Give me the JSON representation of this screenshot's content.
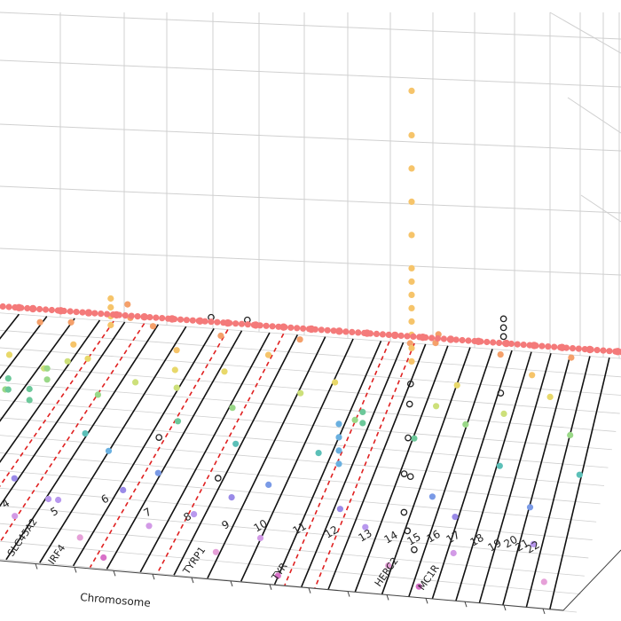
{
  "chart_data": {
    "type": "scatter",
    "view": "3d-manhattan",
    "title": "",
    "xlabel": "Chromosome",
    "ylabel": "",
    "zlabel": "",
    "grid": true,
    "chromosome_labels": [
      "4",
      "5",
      "6",
      "7",
      "8",
      "9",
      "10",
      "11",
      "12",
      "13",
      "14",
      "15",
      "16",
      "17",
      "18",
      "19",
      "20",
      "21",
      "22"
    ],
    "gene_labels": [
      {
        "name": "SLC45A2",
        "chromosome": 5
      },
      {
        "name": "IRF4",
        "chromosome": 6
      },
      {
        "name": "TYRP1",
        "chromosome": 9
      },
      {
        "name": "TYR",
        "chromosome": 11
      },
      {
        "name": "HERC2",
        "chromosome": 15
      },
      {
        "name": "MC1R",
        "chromosome": 16
      }
    ],
    "lane_colors": [
      "#f47a7a",
      "#f5a06a",
      "#f6c46a",
      "#e8d86a",
      "#cde07a",
      "#9ad888",
      "#6cc89a",
      "#5cc0b8",
      "#6ab0e0",
      "#7a9ae6",
      "#9a8ae8",
      "#b898ee",
      "#d29ae6",
      "#e6a0d8",
      "#d870c8"
    ],
    "series": [
      {
        "name": "",
        "points": [
          {
            "x": 1.0,
            "lane": 0,
            "y": 0.3
          },
          {
            "x": 1.5,
            "lane": 0,
            "y": 0.3
          },
          {
            "x": 2.5,
            "lane": 0,
            "y": 0.3
          },
          {
            "x": 3.5,
            "lane": 0,
            "y": 0.3
          },
          {
            "x": 4.5,
            "lane": 0,
            "y": 0.3
          },
          {
            "x": 5.5,
            "lane": 0,
            "y": 0.3
          },
          {
            "x": 6.5,
            "lane": 0,
            "y": 0.3
          },
          {
            "x": 7.5,
            "lane": 0,
            "y": 0.3
          },
          {
            "x": 8.5,
            "lane": 0,
            "y": 0.3
          },
          {
            "x": 9.5,
            "lane": 0,
            "y": 0.3
          },
          {
            "x": 10.5,
            "lane": 0,
            "y": 0.3
          },
          {
            "x": 11.5,
            "lane": 0,
            "y": 0.3
          },
          {
            "x": 12.5,
            "lane": 0,
            "y": 0.3
          },
          {
            "x": 13.5,
            "lane": 0,
            "y": 0.3
          },
          {
            "x": 14.5,
            "lane": 0,
            "y": 0.3
          },
          {
            "x": 15.5,
            "lane": 0,
            "y": 0.3
          },
          {
            "x": 16.5,
            "lane": 0,
            "y": 0.3
          },
          {
            "x": 17.5,
            "lane": 0,
            "y": 0.3
          },
          {
            "x": 18.5,
            "lane": 0,
            "y": 0.3
          },
          {
            "x": 19.5,
            "lane": 0,
            "y": 0.3
          },
          {
            "x": 20.5,
            "lane": 0,
            "y": 0.3
          },
          {
            "x": 21.5,
            "lane": 0,
            "y": 0.3
          },
          {
            "x": 22.5,
            "lane": 0,
            "y": 0.3
          },
          {
            "x": 2.2,
            "lane": 1,
            "y": 0.5
          },
          {
            "x": 3.3,
            "lane": 1,
            "y": 0.6
          },
          {
            "x": 5.3,
            "lane": 1,
            "y": 1.6
          },
          {
            "x": 5.4,
            "lane": 1,
            "y": 1.0
          },
          {
            "x": 6.2,
            "lane": 1,
            "y": 0.7
          },
          {
            "x": 8.6,
            "lane": 1,
            "y": 0.5
          },
          {
            "x": 11.4,
            "lane": 1,
            "y": 0.6
          },
          {
            "x": 15.3,
            "lane": 1,
            "y": 0.8
          },
          {
            "x": 16.2,
            "lane": 1,
            "y": 0.9
          },
          {
            "x": 16.3,
            "lane": 1,
            "y": 1.3
          },
          {
            "x": 18.5,
            "lane": 1,
            "y": 0.6
          },
          {
            "x": 21.0,
            "lane": 1,
            "y": 0.7
          },
          {
            "x": 3.8,
            "lane": 2,
            "y": 0.4
          },
          {
            "x": 5.1,
            "lane": 2,
            "y": 2.6
          },
          {
            "x": 5.1,
            "lane": 2,
            "y": 2.2
          },
          {
            "x": 5.1,
            "lane": 2,
            "y": 1.8
          },
          {
            "x": 5.1,
            "lane": 2,
            "y": 1.4
          },
          {
            "x": 7.4,
            "lane": 2,
            "y": 0.5
          },
          {
            "x": 10.6,
            "lane": 2,
            "y": 0.6
          },
          {
            "x": 15.6,
            "lane": 2,
            "y": 13.0
          },
          {
            "x": 15.6,
            "lane": 2,
            "y": 11.0
          },
          {
            "x": 15.6,
            "lane": 2,
            "y": 9.5
          },
          {
            "x": 15.6,
            "lane": 2,
            "y": 8.0
          },
          {
            "x": 15.6,
            "lane": 2,
            "y": 6.5
          },
          {
            "x": 15.6,
            "lane": 2,
            "y": 5.0
          },
          {
            "x": 15.6,
            "lane": 2,
            "y": 4.4
          },
          {
            "x": 15.6,
            "lane": 2,
            "y": 3.8
          },
          {
            "x": 15.6,
            "lane": 2,
            "y": 3.2
          },
          {
            "x": 15.6,
            "lane": 2,
            "y": 2.6
          },
          {
            "x": 15.6,
            "lane": 2,
            "y": 2.0
          },
          {
            "x": 15.6,
            "lane": 2,
            "y": 1.4
          },
          {
            "x": 15.6,
            "lane": 2,
            "y": 0.8
          },
          {
            "x": 19.8,
            "lane": 2,
            "y": 0.6
          },
          {
            "x": 2.0,
            "lane": 3,
            "y": 0.5
          },
          {
            "x": 4.7,
            "lane": 3,
            "y": 0.6
          },
          {
            "x": 7.7,
            "lane": 3,
            "y": 0.4
          },
          {
            "x": 9.4,
            "lane": 3,
            "y": 0.5
          },
          {
            "x": 13.2,
            "lane": 3,
            "y": 0.4
          },
          {
            "x": 17.4,
            "lane": 3,
            "y": 0.7
          },
          {
            "x": 20.6,
            "lane": 3,
            "y": 0.5
          },
          {
            "x": 1.6,
            "lane": 4,
            "y": 0.4
          },
          {
            "x": 3.6,
            "lane": 4,
            "y": 0.8
          },
          {
            "x": 4.4,
            "lane": 4,
            "y": 1.2
          },
          {
            "x": 6.7,
            "lane": 4,
            "y": 0.5
          },
          {
            "x": 8.1,
            "lane": 4,
            "y": 0.4
          },
          {
            "x": 12.3,
            "lane": 4,
            "y": 0.6
          },
          {
            "x": 16.9,
            "lane": 4,
            "y": 0.5
          },
          {
            "x": 19.2,
            "lane": 4,
            "y": 0.4
          },
          {
            "x": 2.7,
            "lane": 5,
            "y": 0.5
          },
          {
            "x": 4.1,
            "lane": 5,
            "y": 1.6
          },
          {
            "x": 4.1,
            "lane": 5,
            "y": 1.1
          },
          {
            "x": 5.8,
            "lane": 5,
            "y": 0.6
          },
          {
            "x": 10.3,
            "lane": 5,
            "y": 0.5
          },
          {
            "x": 14.4,
            "lane": 5,
            "y": 0.4
          },
          {
            "x": 18.1,
            "lane": 5,
            "y": 0.6
          },
          {
            "x": 21.6,
            "lane": 5,
            "y": 0.5
          },
          {
            "x": 1.9,
            "lane": 6,
            "y": 0.4
          },
          {
            "x": 3.2,
            "lane": 6,
            "y": 1.8
          },
          {
            "x": 3.2,
            "lane": 6,
            "y": 1.3
          },
          {
            "x": 3.9,
            "lane": 6,
            "y": 1.4
          },
          {
            "x": 3.9,
            "lane": 6,
            "y": 0.9
          },
          {
            "x": 8.8,
            "lane": 6,
            "y": 0.5
          },
          {
            "x": 14.9,
            "lane": 6,
            "y": 1.6
          },
          {
            "x": 14.9,
            "lane": 6,
            "y": 1.1
          },
          {
            "x": 16.6,
            "lane": 6,
            "y": 0.6
          },
          {
            "x": 1.3,
            "lane": 7,
            "y": 0.5
          },
          {
            "x": 6.1,
            "lane": 7,
            "y": 0.4
          },
          {
            "x": 11.0,
            "lane": 7,
            "y": 0.5
          },
          {
            "x": 13.7,
            "lane": 7,
            "y": 0.4
          },
          {
            "x": 19.6,
            "lane": 7,
            "y": 0.5
          },
          {
            "x": 22.2,
            "lane": 7,
            "y": 0.4
          },
          {
            "x": 2.9,
            "lane": 8,
            "y": 2.2
          },
          {
            "x": 2.9,
            "lane": 8,
            "y": 1.7
          },
          {
            "x": 2.9,
            "lane": 8,
            "y": 1.2
          },
          {
            "x": 3.5,
            "lane": 8,
            "y": 0.7
          },
          {
            "x": 7.2,
            "lane": 8,
            "y": 0.5
          },
          {
            "x": 14.6,
            "lane": 8,
            "y": 2.6
          },
          {
            "x": 14.6,
            "lane": 8,
            "y": 2.0
          },
          {
            "x": 14.6,
            "lane": 8,
            "y": 1.4
          },
          {
            "x": 14.6,
            "lane": 8,
            "y": 0.8
          },
          {
            "x": 2.6,
            "lane": 9,
            "y": 2.0
          },
          {
            "x": 2.6,
            "lane": 9,
            "y": 1.4
          },
          {
            "x": 2.6,
            "lane": 9,
            "y": 0.8
          },
          {
            "x": 9.1,
            "lane": 9,
            "y": 0.5
          },
          {
            "x": 12.6,
            "lane": 9,
            "y": 0.4
          },
          {
            "x": 17.8,
            "lane": 9,
            "y": 0.5
          },
          {
            "x": 20.9,
            "lane": 9,
            "y": 0.4
          },
          {
            "x": 1.4,
            "lane": 10,
            "y": 0.4
          },
          {
            "x": 4.9,
            "lane": 10,
            "y": 0.5
          },
          {
            "x": 8.3,
            "lane": 10,
            "y": 0.4
          },
          {
            "x": 11.7,
            "lane": 10,
            "y": 0.5
          },
          {
            "x": 15.1,
            "lane": 10,
            "y": 0.4
          },
          {
            "x": 18.7,
            "lane": 10,
            "y": 0.5
          },
          {
            "x": 2.3,
            "lane": 11,
            "y": 0.4
          },
          {
            "x": 2.6,
            "lane": 11,
            "y": 0.4
          },
          {
            "x": 6.3,
            "lane": 11,
            "y": 0.5
          },
          {
            "x": 6.6,
            "lane": 11,
            "y": 0.5
          },
          {
            "x": 10.8,
            "lane": 11,
            "y": 0.4
          },
          {
            "x": 16.1,
            "lane": 11,
            "y": 0.5
          },
          {
            "x": 21.3,
            "lane": 11,
            "y": 0.4
          },
          {
            "x": 1.8,
            "lane": 12,
            "y": 0.5
          },
          {
            "x": 5.6,
            "lane": 12,
            "y": 0.4
          },
          {
            "x": 9.7,
            "lane": 12,
            "y": 0.5
          },
          {
            "x": 13.1,
            "lane": 12,
            "y": 0.4
          },
          {
            "x": 19.0,
            "lane": 12,
            "y": 0.5
          },
          {
            "x": 3.1,
            "lane": 13,
            "y": 0.4
          },
          {
            "x": 7.9,
            "lane": 13,
            "y": 0.5
          },
          {
            "x": 12.0,
            "lane": 13,
            "y": 0.4
          },
          {
            "x": 17.2,
            "lane": 13,
            "y": 0.5
          },
          {
            "x": 21.9,
            "lane": 13,
            "y": 0.4
          },
          {
            "x": 1.2,
            "lane": 14,
            "y": 0.5
          },
          {
            "x": 4.6,
            "lane": 14,
            "y": 0.4
          },
          {
            "x": 8.9,
            "lane": 14,
            "y": 0.5
          },
          {
            "x": 14.1,
            "lane": 14,
            "y": 0.4
          },
          {
            "x": 18.3,
            "lane": 14,
            "y": 0.5
          }
        ]
      },
      {
        "name": "",
        "style": "open-circle",
        "points": [
          {
            "x": 7.9,
            "lane": 0,
            "y": 0.5
          },
          {
            "x": 9.2,
            "lane": 0,
            "y": 0.5
          },
          {
            "x": 18.4,
            "lane": 0,
            "y": 1.4
          },
          {
            "x": 18.4,
            "lane": 0,
            "y": 1.0
          },
          {
            "x": 18.4,
            "lane": 0,
            "y": 0.6
          },
          {
            "x": 15.8,
            "lane": 3,
            "y": 0.6
          },
          {
            "x": 16.0,
            "lane": 4,
            "y": 0.5
          },
          {
            "x": 16.4,
            "lane": 6,
            "y": 0.6
          },
          {
            "x": 16.7,
            "lane": 8,
            "y": 0.6
          },
          {
            "x": 16.9,
            "lane": 8,
            "y": 0.5
          },
          {
            "x": 17.1,
            "lane": 10,
            "y": 0.5
          },
          {
            "x": 17.4,
            "lane": 11,
            "y": 0.5
          },
          {
            "x": 17.8,
            "lane": 12,
            "y": 0.5
          },
          {
            "x": 8.5,
            "lane": 7,
            "y": 0.5
          },
          {
            "x": 11.0,
            "lane": 9,
            "y": 0.5
          },
          {
            "x": 18.9,
            "lane": 3,
            "y": 0.5
          }
        ]
      }
    ]
  }
}
